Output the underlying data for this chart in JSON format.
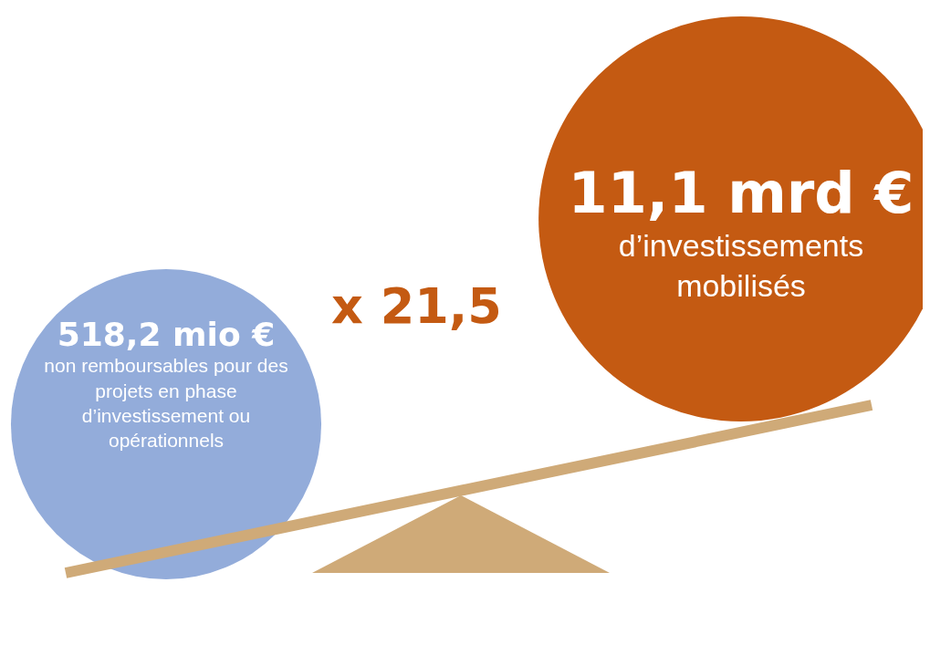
{
  "chart_data": {
    "type": "other",
    "categories": [
      "non remboursables pour des projets en phase d’investissement ou opérationnels",
      "d’investissements mobilisés"
    ],
    "values": [
      518.2,
      11.1
    ],
    "value_labels": [
      "518,2 mio €",
      "11,1 mrd €"
    ],
    "colors": [
      "#93acda",
      "#c45a12"
    ],
    "annotations": [
      "x 21,5"
    ]
  }
}
